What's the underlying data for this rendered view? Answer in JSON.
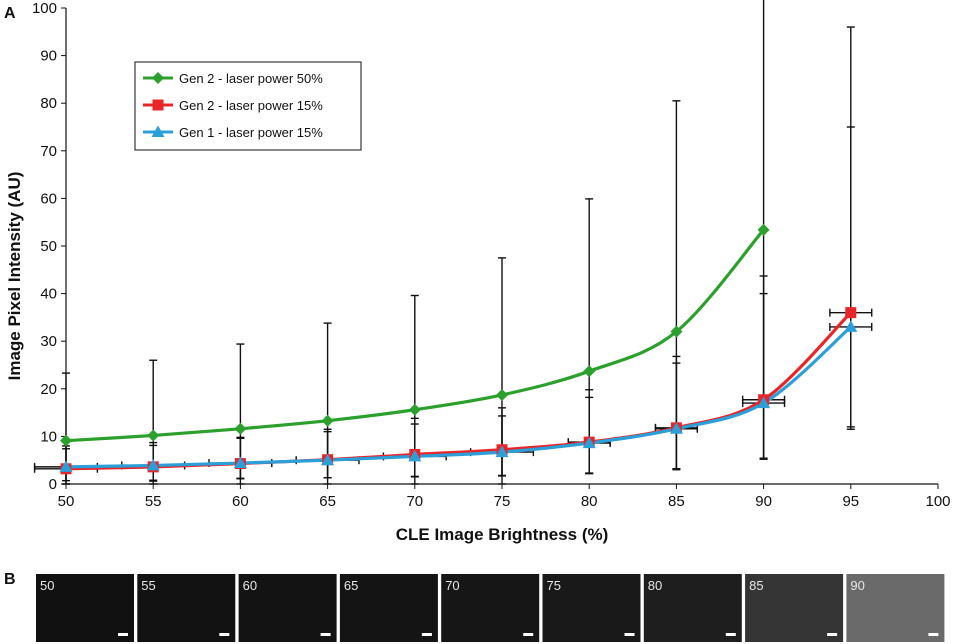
{
  "panel_a_label": "A",
  "panel_b_label": "B",
  "chart_data": {
    "type": "line",
    "title": "",
    "xlabel": "CLE Image Brightness (%)",
    "ylabel": "Image Pixel Intensity (AU)",
    "xlim": [
      50,
      100
    ],
    "ylim": [
      0,
      100
    ],
    "xticks": [
      50,
      55,
      60,
      65,
      70,
      75,
      80,
      85,
      90,
      95,
      100
    ],
    "yticks": [
      0,
      10,
      20,
      30,
      40,
      50,
      60,
      70,
      80,
      90,
      100
    ],
    "grid": false,
    "legend_position": "top-left",
    "series": [
      {
        "name": "Gen 2 - laser power 50%",
        "color": "#2ca02c",
        "marker": "diamond",
        "x": [
          50,
          55,
          60,
          65,
          70,
          75,
          80,
          85,
          90
        ],
        "y": [
          9.1,
          10.2,
          11.6,
          13.3,
          15.6,
          18.7,
          23.7,
          32.0,
          53.4
        ],
        "yerr_low": [
          9.1,
          10.2,
          11.6,
          13.3,
          15.6,
          18.7,
          21.5,
          28.8,
          48.0
        ],
        "yerr_high": [
          14.2,
          15.8,
          17.8,
          20.5,
          24.0,
          28.8,
          36.2,
          48.5,
          81.0
        ]
      },
      {
        "name": "Gen 2 - laser power 15%",
        "color": "#e8262a",
        "marker": "square",
        "x": [
          50,
          55,
          60,
          65,
          70,
          75,
          80,
          85,
          90,
          95
        ],
        "y": [
          3.2,
          3.6,
          4.3,
          5.1,
          6.2,
          7.2,
          8.8,
          11.8,
          17.7,
          36.0
        ],
        "yerr_low": [
          2.5,
          2.8,
          3.2,
          3.8,
          4.6,
          5.4,
          6.6,
          8.8,
          12.5,
          24.0
        ],
        "yerr_high": [
          4.2,
          4.5,
          5.5,
          6.4,
          7.6,
          8.8,
          11.0,
          15.0,
          26.0,
          60.0
        ],
        "xerr": [
          1.8,
          0,
          0,
          0,
          0,
          0,
          1.2,
          1.2,
          1.2,
          1.2
        ]
      },
      {
        "name": "Gen 1 - laser power 15%",
        "color": "#2a9fd8",
        "marker": "triangle",
        "x": [
          50,
          55,
          60,
          65,
          70,
          75,
          80,
          85,
          90,
          95
        ],
        "y": [
          3.6,
          3.9,
          4.4,
          5.0,
          5.8,
          6.7,
          8.6,
          11.6,
          17.0,
          33.0
        ],
        "yerr_low": [
          3.6,
          3.3,
          3.2,
          3.7,
          4.3,
          5.0,
          6.3,
          8.4,
          11.6,
          21.5
        ],
        "yerr_high": [
          4.4,
          4.8,
          5.2,
          6.0,
          6.8,
          7.6,
          9.6,
          13.8,
          23.0,
          42.0
        ],
        "xerr": [
          1.8,
          1.8,
          1.8,
          1.8,
          1.8,
          1.8,
          1.2,
          1.2,
          1.2,
          1.2
        ]
      }
    ]
  },
  "thumbnails": [
    {
      "label": "50",
      "color": "#111111"
    },
    {
      "label": "55",
      "color": "#121212"
    },
    {
      "label": "60",
      "color": "#131313"
    },
    {
      "label": "65",
      "color": "#141414"
    },
    {
      "label": "70",
      "color": "#161616"
    },
    {
      "label": "75",
      "color": "#191919"
    },
    {
      "label": "80",
      "color": "#1e1e1e"
    },
    {
      "label": "85",
      "color": "#353535"
    },
    {
      "label": "90",
      "color": "#6a6a6a"
    }
  ]
}
